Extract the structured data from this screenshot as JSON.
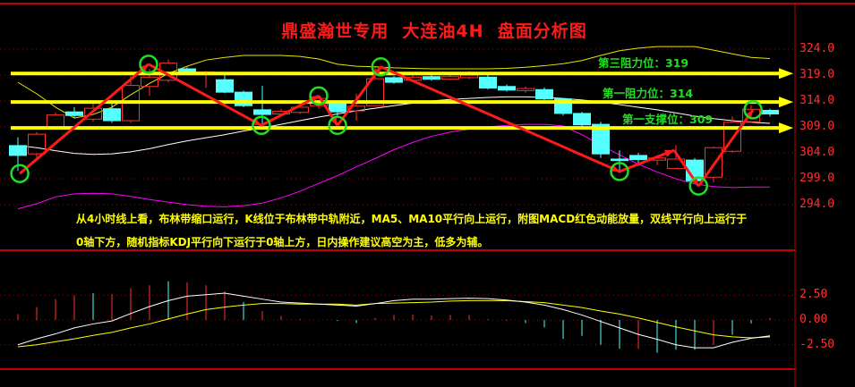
{
  "title": "鼎盛瀚世专用  大连油4H  盘面分析图",
  "levels": [
    {
      "label": "第三阻力位：319",
      "price": 319.3
    },
    {
      "label": "第一阻力位：314",
      "price": 313.8
    },
    {
      "label": "第一支撑位：309",
      "price": 308.8
    }
  ],
  "commentary": [
    "从4小时线上看，布林带缩口运行，K线位于布林带中轨附近，MA5、MA10平行向上运行，附图MACD红色动能放量，双线平行向上运行于",
    "0轴下方，随机指标KDJ平行向下运行于0轴上方，日内操作建议高空为主，低多为辅。"
  ],
  "colors": {
    "bull": "#ff3030",
    "bear": "#55ffff",
    "level": "#ffff00",
    "annotation": "#ff1a1a",
    "circle": "#22dd22",
    "upper": "#e6e600",
    "mid": "#ffffff",
    "lower": "#ff00ff",
    "dif": "#ffffff",
    "dea": "#ffff00"
  },
  "chart_data": [
    {
      "type": "candlestick",
      "timeframe": "4H",
      "y_ticks": [
        "324.0",
        "319.0",
        "314.0",
        "309.0",
        "304.0",
        "299.0",
        "294.0"
      ],
      "ylim": [
        294,
        324
      ],
      "grid": "dotted horizontal",
      "candles": [
        [
          305.4,
          307,
          300.5,
          303.5
        ],
        [
          303.8,
          308,
          302.5,
          307.6
        ],
        [
          308.8,
          311.8,
          308.5,
          311.3
        ],
        [
          311.9,
          312.8,
          310.8,
          311.2
        ],
        [
          310.5,
          314,
          310,
          312.6
        ],
        [
          312.5,
          313.5,
          309.8,
          310.2
        ],
        [
          310.2,
          318.8,
          309.8,
          317
        ],
        [
          316.8,
          320.2,
          315,
          318.6
        ],
        [
          318,
          322,
          317.6,
          321.3
        ],
        [
          320.2,
          320.5,
          319.2,
          319.5
        ],
        [
          319.3,
          319.8,
          316.5,
          319.6
        ],
        [
          318.1,
          319,
          315.5,
          315.7
        ],
        [
          315.7,
          316,
          312.8,
          313.1
        ],
        [
          312.3,
          316.9,
          309.5,
          311.4
        ],
        [
          311.5,
          312.5,
          311,
          312
        ],
        [
          311.8,
          313.2,
          311.5,
          312.8
        ],
        [
          313.1,
          315,
          312.5,
          314.5
        ],
        [
          313.5,
          314,
          311,
          311.9
        ],
        [
          312.1,
          315.4,
          310.2,
          313
        ],
        [
          313.1,
          320.5,
          313,
          318.3
        ],
        [
          318.5,
          318.8,
          317.3,
          317.6
        ],
        [
          318,
          319,
          317.8,
          318.6
        ],
        [
          318.7,
          319.2,
          317.9,
          318.2
        ],
        [
          318.2,
          319,
          318,
          318.7
        ],
        [
          318.5,
          319.8,
          318.2,
          319
        ],
        [
          318.6,
          319.2,
          316.2,
          316.5
        ],
        [
          316.8,
          317.2,
          315.8,
          316.1
        ],
        [
          316,
          316.8,
          315.6,
          316.4
        ],
        [
          316.2,
          316.6,
          314,
          314.4
        ],
        [
          314.4,
          314.6,
          311.2,
          311.6
        ],
        [
          311.6,
          311.9,
          309,
          309.4
        ],
        [
          309.5,
          310,
          303,
          303.8
        ],
        [
          302.8,
          304.5,
          300.2,
          302.5
        ],
        [
          303.5,
          304,
          301.5,
          302.7
        ],
        [
          302.6,
          303.6,
          301.6,
          303
        ],
        [
          301,
          305.5,
          300.8,
          302.8
        ],
        [
          302.6,
          303,
          298.2,
          298.6
        ],
        [
          299.3,
          305.2,
          298.3,
          305
        ],
        [
          304.3,
          311,
          304,
          309.9
        ],
        [
          310,
          313.2,
          309.8,
          312.4
        ],
        [
          312.2,
          312.5,
          311,
          311.5
        ]
      ],
      "candle_fields": [
        "open",
        "high",
        "low",
        "close"
      ],
      "bollinger_upper": [
        317.6,
        315.4,
        312.8,
        310.7,
        311.4,
        312.8,
        315.2,
        317.4,
        319.3,
        320.7,
        321.9,
        322.4,
        322.8,
        322.8,
        322.8,
        322.6,
        322.1,
        321.1,
        320.7,
        320.6,
        320.4,
        320.3,
        320.2,
        320.2,
        320.2,
        320.2,
        320.3,
        320.5,
        320.8,
        321.2,
        321.8,
        322.8,
        323.7,
        324.2,
        324.5,
        324.5,
        324.5,
        323.8,
        323.1,
        322.4,
        322.2
      ],
      "bollinger_mid": [
        305.4,
        305,
        304.4,
        303.9,
        303.7,
        303.8,
        304.2,
        304.8,
        305.6,
        306.3,
        306.9,
        307.5,
        308.2,
        308.8,
        309.5,
        310.2,
        310.9,
        311.5,
        312.1,
        312.6,
        313.1,
        313.6,
        314,
        314.3,
        314.5,
        314.7,
        314.8,
        314.8,
        314.7,
        314.5,
        314.2,
        313.8,
        313.3,
        312.8,
        312.3,
        311.7,
        311.1,
        310.6,
        310.2,
        309.9,
        309.7
      ],
      "bollinger_lower": [
        293.2,
        294.2,
        295.5,
        296.1,
        296.2,
        296.1,
        295.6,
        295,
        294.5,
        294,
        293.7,
        293.6,
        293.8,
        294.3,
        295.3,
        296.6,
        298.1,
        299.6,
        301.3,
        302.9,
        304.6,
        306,
        307.2,
        308,
        308.6,
        309,
        309.3,
        309.5,
        309.5,
        309.2,
        307.5,
        305.5,
        303.6,
        301.8,
        300.3,
        299,
        298,
        297.5,
        297.3,
        297.4,
        297.4
      ],
      "zigzag": [
        [
          0.1,
          300.0
        ],
        [
          6.95,
          321.1
        ],
        [
          12.95,
          309.3
        ],
        [
          16,
          315.0
        ],
        [
          17,
          309.3
        ],
        [
          19.3,
          320.6
        ],
        [
          32,
          300.4
        ],
        [
          34.9,
          304.5
        ],
        [
          36.2,
          297.6
        ],
        [
          39.1,
          312.3
        ]
      ],
      "circled_points": [
        0,
        1,
        2,
        3,
        4,
        5,
        6,
        8,
        9
      ]
    },
    {
      "type": "macd",
      "y_ticks": [
        "2.50",
        "0.00",
        "-2.50"
      ],
      "ylim": [
        -4.5,
        5
      ],
      "histogram": [
        0.6,
        1.3,
        2.1,
        2.5,
        2.7,
        2.6,
        3.2,
        3.5,
        3.9,
        3.8,
        3.5,
        2.9,
        1.8,
        0.9,
        0.4,
        0.1,
        0,
        -0.1,
        -0.3,
        0.2,
        0.5,
        0.55,
        0.45,
        0.5,
        0.5,
        0.1,
        -0.05,
        -0.3,
        -0.75,
        -1.9,
        -1.6,
        -2.5,
        -2.9,
        -2.9,
        -3.3,
        -3.0,
        -3.0,
        -2.5,
        -1.5,
        -0.35,
        0.2
      ],
      "histogram_colors": [
        "r",
        "r",
        "r",
        "r",
        "c",
        "r",
        "r",
        "r",
        "c",
        "r",
        "r",
        "r",
        "c",
        "r",
        "r",
        "r",
        "r",
        "c",
        "c",
        "r",
        "r",
        "r",
        "r",
        "r",
        "r",
        "r",
        "c",
        "c",
        "c",
        "c",
        "c",
        "c",
        "c",
        "r",
        "c",
        "c",
        "c",
        "r",
        "c",
        "c",
        "r"
      ],
      "dif": [
        -2.5,
        -1.9,
        -1.4,
        -0.8,
        -0.4,
        -0.1,
        0.65,
        1.35,
        1.95,
        2.4,
        2.55,
        2.7,
        2.4,
        2.1,
        1.8,
        1.7,
        1.6,
        1.5,
        1.4,
        1.65,
        1.95,
        2.1,
        2.1,
        2.15,
        2.2,
        2.15,
        2.0,
        1.8,
        1.5,
        1.05,
        0.5,
        -0.15,
        -0.8,
        -1.45,
        -1.95,
        -2.5,
        -2.8,
        -2.8,
        -2.25,
        -1.85,
        -1.6
      ],
      "dea": [
        -2.7,
        -2.5,
        -2.2,
        -1.9,
        -1.55,
        -1.25,
        -0.8,
        -0.4,
        0.1,
        0.6,
        1.05,
        1.3,
        1.5,
        1.65,
        1.65,
        1.6,
        1.6,
        1.6,
        1.5,
        1.65,
        1.7,
        1.75,
        1.8,
        1.9,
        1.95,
        1.95,
        1.95,
        1.85,
        1.75,
        1.5,
        1.25,
        0.9,
        0.6,
        0.2,
        -0.25,
        -0.7,
        -1.1,
        -1.5,
        -1.7,
        -1.8,
        -1.7
      ],
      "highlight_ellipse_at_index": 39.1
    }
  ]
}
